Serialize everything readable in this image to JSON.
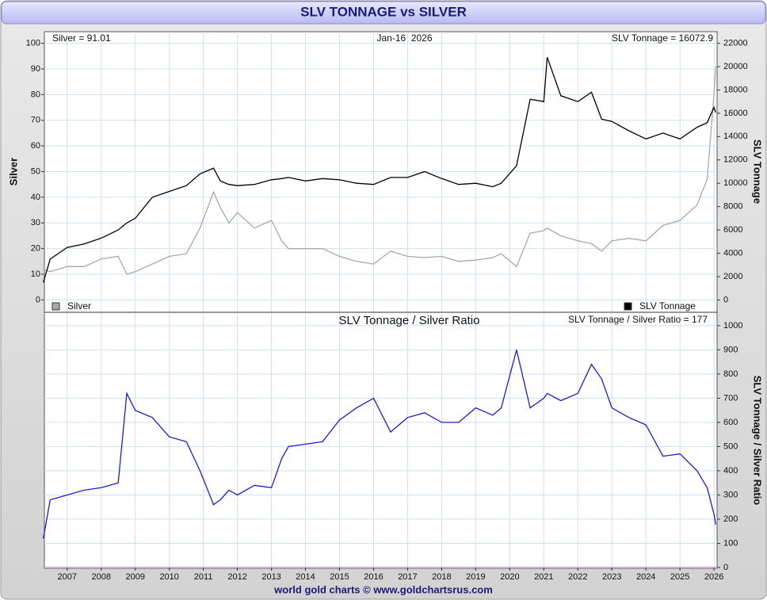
{
  "header": {
    "title": "SLV TONNAGE vs SILVER"
  },
  "footer": {
    "text": "world gold charts © www.goldchartsrus.com"
  },
  "chart_data": [
    {
      "type": "line",
      "annotations": [
        "Silver = 91.01",
        "Jan-16  2026",
        "SLV Tonnage = 16072.9"
      ],
      "ylabel": "Silver",
      "y2label": "SLV Tonnage",
      "x": [
        2006.3,
        2006.5,
        2007.0,
        2007.5,
        2008.0,
        2008.5,
        2008.75,
        2009.0,
        2009.5,
        2010.0,
        2010.5,
        2010.9,
        2011.3,
        2011.5,
        2011.75,
        2012.0,
        2012.5,
        2013.0,
        2013.3,
        2013.5,
        2014.0,
        2014.5,
        2015.0,
        2015.5,
        2016.0,
        2016.5,
        2017.0,
        2017.5,
        2018.0,
        2018.5,
        2019.0,
        2019.5,
        2019.75,
        2020.2,
        2020.6,
        2021.0,
        2021.1,
        2021.5,
        2022.0,
        2022.4,
        2022.7,
        2023.0,
        2023.5,
        2024.0,
        2024.5,
        2025.0,
        2025.5,
        2025.8,
        2026.0,
        2026.05
      ],
      "xlim": [
        2006.33,
        2026.09
      ],
      "ylim": [
        -4.5,
        104.5
      ],
      "yticks": [
        0,
        10,
        20,
        30,
        40,
        50,
        60,
        70,
        80,
        90,
        100
      ],
      "y2lim": [
        -990,
        22990
      ],
      "y2ticks": [
        0,
        2000,
        4000,
        6000,
        8000,
        10000,
        12000,
        14000,
        16000,
        18000,
        20000,
        22000
      ],
      "grid": true,
      "series": [
        {
          "name": "Silver",
          "color": "#a9a9a9",
          "axis": "y",
          "values": [
            12,
            11,
            13,
            13,
            16,
            17,
            10,
            11,
            14,
            17,
            18,
            28,
            42,
            36,
            30,
            34,
            28,
            31,
            23,
            20,
            20,
            20,
            17,
            15,
            14,
            19,
            17,
            16.5,
            17,
            15,
            15.5,
            16.5,
            18,
            13,
            26,
            27,
            28,
            25,
            23,
            22,
            19,
            23,
            24,
            23,
            29,
            31,
            37,
            47,
            80,
            91.01
          ]
        },
        {
          "name": "SLV Tonnage",
          "color": "#000000",
          "axis": "y2",
          "values": [
            1500,
            3500,
            4500,
            4800,
            5300,
            6000,
            6600,
            7000,
            8800,
            9300,
            9800,
            10800,
            11300,
            10200,
            9900,
            9800,
            9900,
            10300,
            10400,
            10500,
            10200,
            10400,
            10300,
            10000,
            9900,
            10500,
            10500,
            11000,
            10400,
            9900,
            10000,
            9700,
            10000,
            11500,
            17200,
            17000,
            20800,
            17500,
            17000,
            17800,
            15500,
            15300,
            14500,
            13800,
            14300,
            13800,
            14800,
            15200,
            16500,
            16072.9
          ]
        }
      ]
    },
    {
      "type": "line",
      "title": "SLV Tonnage / Silver Ratio",
      "annotations": [
        "SLV Tonnage / Silver Ratio = 177"
      ],
      "ylabel": "SLV Tonnage / Silver Ratio",
      "y_axis_side": "right",
      "x": [
        2006.3,
        2006.5,
        2007.0,
        2007.5,
        2008.0,
        2008.5,
        2008.75,
        2009.0,
        2009.5,
        2010.0,
        2010.5,
        2010.9,
        2011.3,
        2011.5,
        2011.75,
        2012.0,
        2012.5,
        2013.0,
        2013.3,
        2013.5,
        2014.0,
        2014.5,
        2015.0,
        2015.5,
        2016.0,
        2016.5,
        2017.0,
        2017.5,
        2018.0,
        2018.5,
        2019.0,
        2019.5,
        2019.75,
        2020.2,
        2020.6,
        2021.0,
        2021.1,
        2021.5,
        2022.0,
        2022.4,
        2022.7,
        2023.0,
        2023.5,
        2024.0,
        2024.5,
        2025.0,
        2025.5,
        2025.8,
        2026.0,
        2026.05
      ],
      "xlim": [
        2006.33,
        2026.09
      ],
      "xticks": [
        2007,
        2008,
        2009,
        2010,
        2011,
        2012,
        2013,
        2014,
        2015,
        2016,
        2017,
        2018,
        2019,
        2020,
        2021,
        2022,
        2023,
        2024,
        2025,
        2026
      ],
      "ylim": [
        0,
        1052
      ],
      "yticks": [
        0,
        100,
        200,
        300,
        400,
        500,
        600,
        700,
        800,
        900,
        1000
      ],
      "grid": true,
      "color": "#1c1cd6",
      "values": [
        120,
        280,
        300,
        320,
        330,
        350,
        720,
        650,
        620,
        540,
        520,
        400,
        260,
        280,
        320,
        300,
        340,
        330,
        450,
        500,
        510,
        520,
        610,
        660,
        700,
        560,
        620,
        640,
        600,
        600,
        660,
        630,
        660,
        900,
        660,
        700,
        720,
        690,
        720,
        840,
        780,
        660,
        620,
        590,
        460,
        470,
        400,
        330,
        220,
        177
      ]
    }
  ]
}
